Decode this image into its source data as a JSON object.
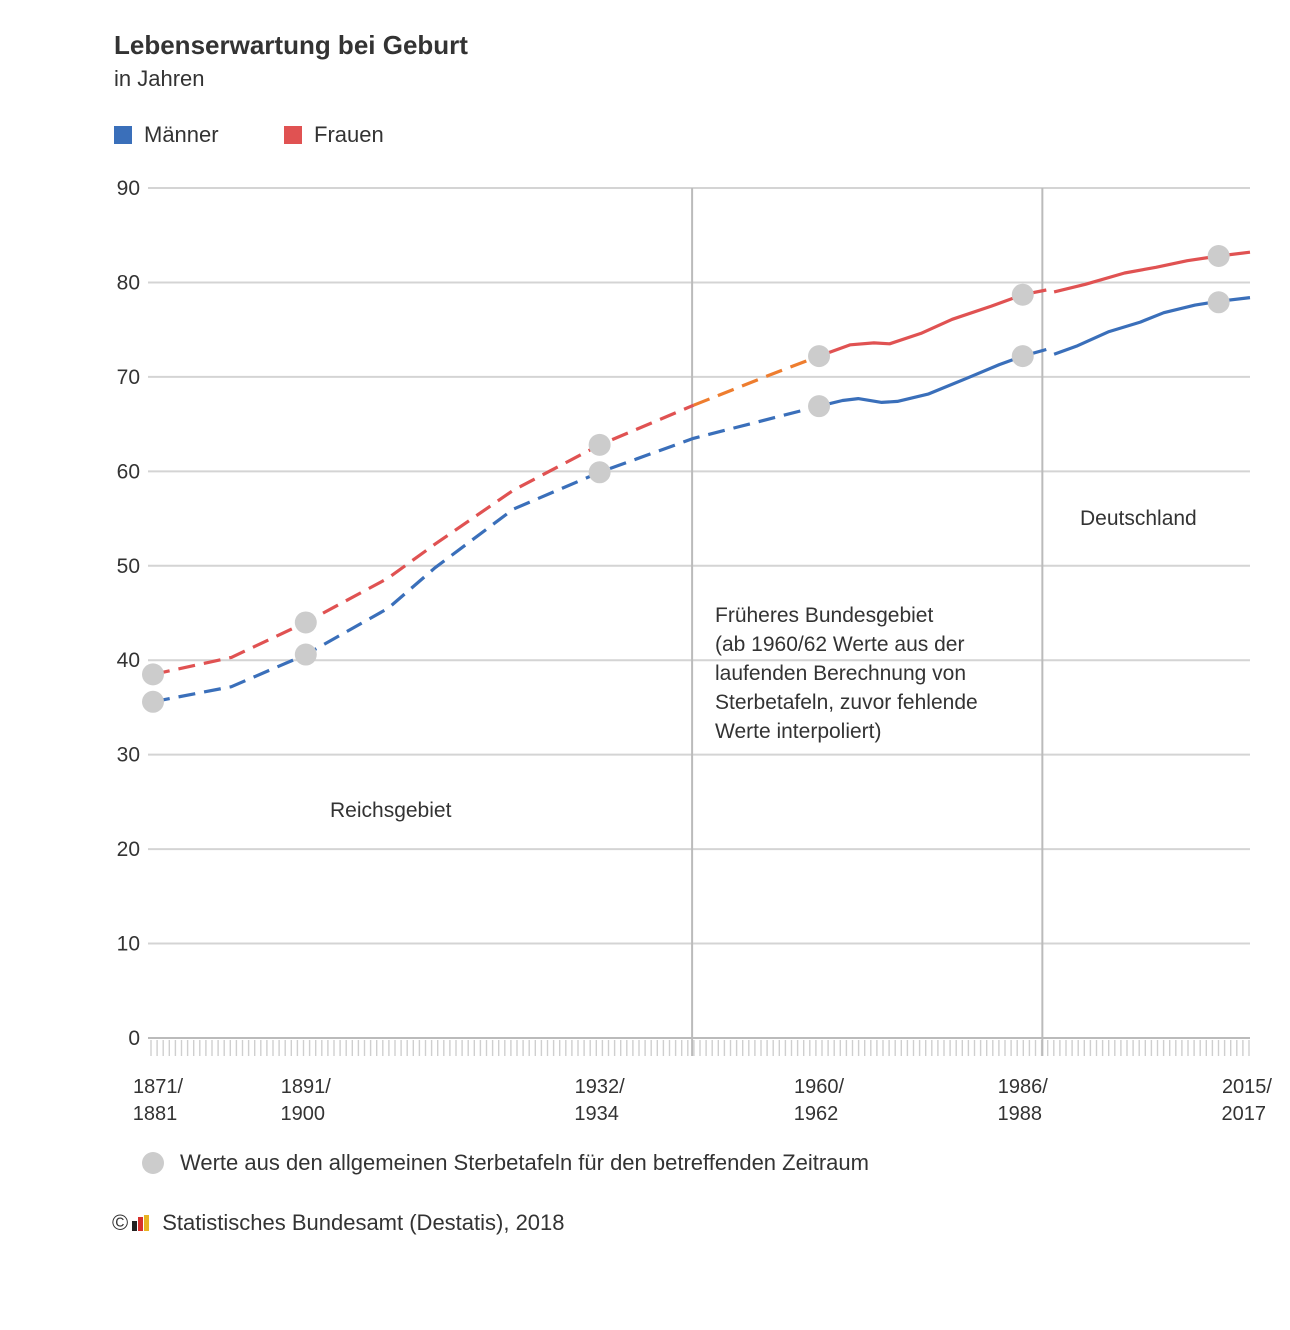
{
  "colors": {
    "maenner": "#3a6fba",
    "frauen": "#e05252",
    "transition": "#ee7d2f",
    "marker": "#cccccc",
    "grid": "#d4d4d4",
    "divider": "#bbbbbb"
  },
  "chart_data": {
    "type": "line",
    "title": "Lebenserwartung bei Geburt",
    "subtitle": "in Jahren",
    "xlabel": "",
    "ylabel": "in Jahren",
    "ylim": [
      0,
      90
    ],
    "yticks": [
      0,
      10,
      20,
      30,
      40,
      50,
      60,
      70,
      80,
      90
    ],
    "xlim": [
      1876,
      2016
    ],
    "grid": true,
    "legend_position": "top-left",
    "x_tick_labels": [
      {
        "x": 1876,
        "line1": "1871/",
        "line2": "1881"
      },
      {
        "x": 1895.5,
        "line1": "1891/",
        "line2": "1900"
      },
      {
        "x": 1933,
        "line1": "1932/",
        "line2": "1934"
      },
      {
        "x": 1961,
        "line1": "1960/",
        "line2": "1962"
      },
      {
        "x": 1987,
        "line1": "1986/",
        "line2": "1988"
      },
      {
        "x": 2016,
        "line1": "2015/",
        "line2": "2017"
      }
    ],
    "dividers": [
      1944.8,
      1989.5
    ],
    "region_labels": [
      {
        "name": "reichsgebiet",
        "lines": [
          "Reichsgebiet"
        ]
      },
      {
        "name": "frueheres-bundesgebiet",
        "lines": [
          "Früheres Bundesgebiet",
          "(ab 1960/62 Werte aus der",
          "laufenden Berechnung von",
          "Sterbetafeln, zuvor fehlende",
          "Werte interpoliert)"
        ]
      },
      {
        "name": "deutschland",
        "lines": [
          "Deutschland"
        ]
      }
    ],
    "series": [
      {
        "name": "Männer",
        "color": "#3a6fba",
        "segments": [
          {
            "style": "dashed",
            "points": [
              [
                1876,
                35.6
              ],
              [
                1886,
                37.2
              ],
              [
                1895.5,
                40.6
              ],
              [
                1906,
                45.5
              ],
              [
                1912,
                49.8
              ],
              [
                1922,
                56.0
              ],
              [
                1933,
                59.9
              ],
              [
                1945,
                63.5
              ],
              [
                1961,
                66.9
              ]
            ]
          },
          {
            "style": "solid",
            "points": [
              [
                1961,
                66.9
              ],
              [
                1964,
                67.5
              ],
              [
                1966,
                67.7
              ],
              [
                1969,
                67.3
              ],
              [
                1971,
                67.4
              ],
              [
                1975,
                68.2
              ],
              [
                1980,
                69.9
              ],
              [
                1984,
                71.3
              ],
              [
                1987,
                72.2
              ],
              [
                1990,
                72.9
              ]
            ]
          },
          {
            "style": "solid",
            "points": [
              [
                1991,
                72.4
              ],
              [
                1994,
                73.3
              ],
              [
                1998,
                74.8
              ],
              [
                2002,
                75.8
              ],
              [
                2005,
                76.8
              ],
              [
                2009,
                77.6
              ],
              [
                2012,
                78.0
              ],
              [
                2016,
                78.4
              ]
            ]
          }
        ],
        "markers": [
          [
            1876,
            35.6
          ],
          [
            1895.5,
            40.6
          ],
          [
            1933,
            59.9
          ],
          [
            1961,
            66.9
          ],
          [
            1987,
            72.2
          ],
          [
            2012,
            77.9
          ]
        ]
      },
      {
        "name": "Frauen",
        "color": "#e05252",
        "segments": [
          {
            "style": "dashed",
            "points": [
              [
                1876,
                38.5
              ],
              [
                1886,
                40.3
              ],
              [
                1895.5,
                44.0
              ],
              [
                1906,
                48.7
              ],
              [
                1912,
                52.3
              ],
              [
                1922,
                58.0
              ],
              [
                1933,
                62.8
              ],
              [
                1945,
                67.0
              ]
            ]
          },
          {
            "style": "dashed",
            "color": "#ee7d2f",
            "points": [
              [
                1945,
                67.0
              ],
              [
                1955,
                70.3
              ],
              [
                1961,
                72.2
              ]
            ]
          },
          {
            "style": "solid",
            "points": [
              [
                1961,
                72.2
              ],
              [
                1965,
                73.4
              ],
              [
                1968,
                73.6
              ],
              [
                1970,
                73.5
              ],
              [
                1974,
                74.6
              ],
              [
                1978,
                76.1
              ],
              [
                1983,
                77.5
              ],
              [
                1987,
                78.7
              ],
              [
                1990,
                79.2
              ]
            ]
          },
          {
            "style": "solid",
            "points": [
              [
                1991,
                79.0
              ],
              [
                1995,
                79.8
              ],
              [
                2000,
                81.0
              ],
              [
                2004,
                81.6
              ],
              [
                2008,
                82.3
              ],
              [
                2012,
                82.8
              ],
              [
                2016,
                83.2
              ]
            ]
          }
        ],
        "markers": [
          [
            1876,
            38.5
          ],
          [
            1895.5,
            44.0
          ],
          [
            1933,
            62.8
          ],
          [
            1961,
            72.2
          ],
          [
            1987,
            78.7
          ],
          [
            2012,
            82.8
          ]
        ]
      }
    ],
    "marker_note": "Werte aus den allgemeinen Sterbetafeln für den betreffenden Zeitraum"
  },
  "copyright": {
    "symbol": "©",
    "text": "Statistisches Bundesamt (Destatis), 2018"
  }
}
